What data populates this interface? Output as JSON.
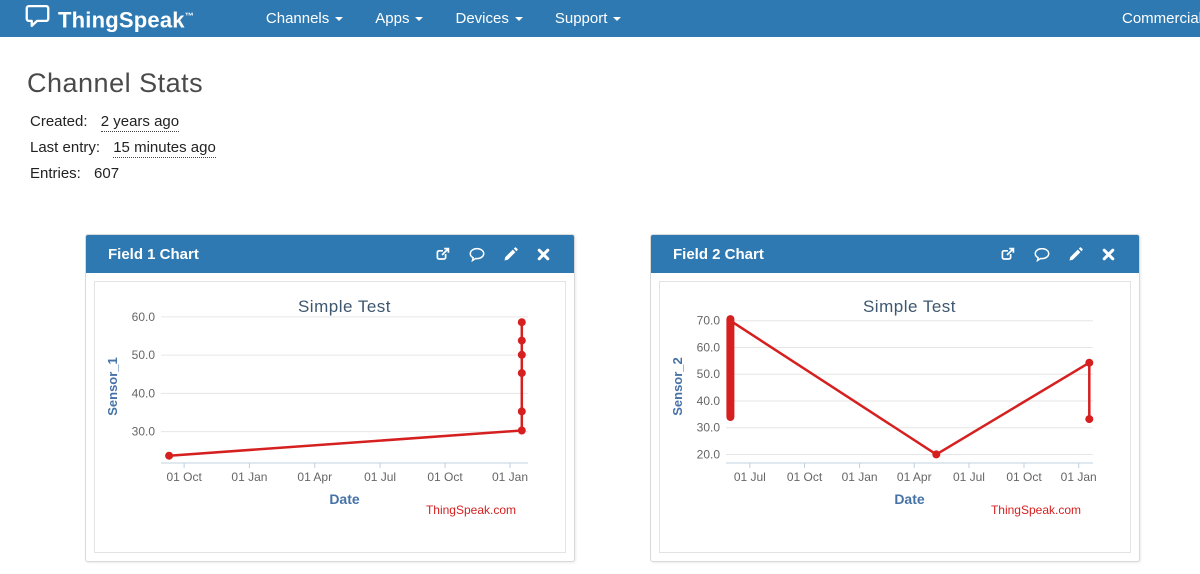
{
  "colors": {
    "navbar_bg": "#2e79b2",
    "accent_red": "#d62020",
    "chart_title": "#3e576f",
    "axis_label": "#4572a7",
    "tick_label": "#666666",
    "gridline": "#e6e6e6",
    "axis_line": "#c0d0e0"
  },
  "navbar": {
    "brand": "ThingSpeak",
    "brand_tm": "™",
    "logo_icon": "speech-bubble-icon",
    "items": [
      {
        "label": "Channels"
      },
      {
        "label": "Apps"
      },
      {
        "label": "Devices"
      },
      {
        "label": "Support"
      }
    ],
    "right_item": {
      "label": "Commercial Use"
    }
  },
  "page": {
    "title": "Channel Stats",
    "stats": [
      {
        "label": "Created:",
        "value": "2 years ago"
      },
      {
        "label": "Last entry:",
        "value": "15 minutes ago"
      },
      {
        "label": "Entries:",
        "value": "607"
      }
    ]
  },
  "panels": [
    {
      "title": "Field 1 Chart",
      "icons": [
        "external-link-icon",
        "comment-icon",
        "edit-icon",
        "close-icon"
      ]
    },
    {
      "title": "Field 2 Chart",
      "icons": [
        "external-link-icon",
        "comment-icon",
        "edit-icon",
        "close-icon"
      ]
    }
  ],
  "chart_data": [
    {
      "type": "line",
      "title": "Simple Test",
      "xlabel": "Date",
      "ylabel": "Sensor_1",
      "credit": "ThingSpeak.com",
      "color": "#d62020",
      "grid": true,
      "ylim": [
        21.8,
        61.8
      ],
      "yticks": [
        {
          "v": 30,
          "label": "30.0"
        },
        {
          "v": 40,
          "label": "40.0"
        },
        {
          "v": 50,
          "label": "50.0"
        },
        {
          "v": 60,
          "label": "60.0"
        }
      ],
      "xticks": [
        {
          "f": 0.063,
          "label": "01 Oct"
        },
        {
          "f": 0.241,
          "label": "01 Jan"
        },
        {
          "f": 0.419,
          "label": "01 Apr"
        },
        {
          "f": 0.597,
          "label": "01 Jul"
        },
        {
          "f": 0.774,
          "label": "01 Oct"
        },
        {
          "f": 0.951,
          "label": "01 Jan"
        }
      ],
      "segments": [
        {
          "w": 2.5,
          "points": [
            [
              0.022,
              23.7
            ],
            [
              0.983,
              30.3
            ],
            [
              0.983,
              58.6
            ]
          ]
        }
      ],
      "markers": [
        [
          0.022,
          23.7
        ],
        [
          0.983,
          30.3
        ],
        [
          0.983,
          35.3
        ],
        [
          0.983,
          45.3
        ],
        [
          0.983,
          50.1
        ],
        [
          0.983,
          53.8
        ],
        [
          0.983,
          58.6
        ]
      ]
    },
    {
      "type": "line",
      "title": "Simple Test",
      "xlabel": "Date",
      "ylabel": "Sensor_2",
      "credit": "ThingSpeak.com",
      "color": "#d62020",
      "grid": true,
      "ylim": [
        16.8,
        74.0
      ],
      "yticks": [
        {
          "v": 20,
          "label": "20.0"
        },
        {
          "v": 30,
          "label": "30.0"
        },
        {
          "v": 40,
          "label": "40.0"
        },
        {
          "v": 50,
          "label": "50.0"
        },
        {
          "v": 60,
          "label": "60.0"
        },
        {
          "v": 70,
          "label": "70.0"
        }
      ],
      "xticks": [
        {
          "f": 0.065,
          "label": "01 Jul"
        },
        {
          "f": 0.214,
          "label": "01 Oct"
        },
        {
          "f": 0.364,
          "label": "01 Jan"
        },
        {
          "f": 0.513,
          "label": "01 Apr"
        },
        {
          "f": 0.662,
          "label": "01 Jul"
        },
        {
          "f": 0.812,
          "label": "01 Oct"
        },
        {
          "f": 0.961,
          "label": "01 Jan"
        }
      ],
      "segments": [
        {
          "w": 8,
          "points": [
            [
              0.012,
              34.0
            ],
            [
              0.012,
              70.6
            ]
          ]
        },
        {
          "w": 2.5,
          "points": [
            [
              0.012,
              70.0
            ],
            [
              0.573,
              20.0
            ],
            [
              0.99,
              54.3
            ],
            [
              0.99,
              33.2
            ]
          ]
        }
      ],
      "markers": [
        [
          0.573,
          20.0
        ],
        [
          0.99,
          54.3
        ],
        [
          0.99,
          33.2
        ]
      ]
    }
  ]
}
